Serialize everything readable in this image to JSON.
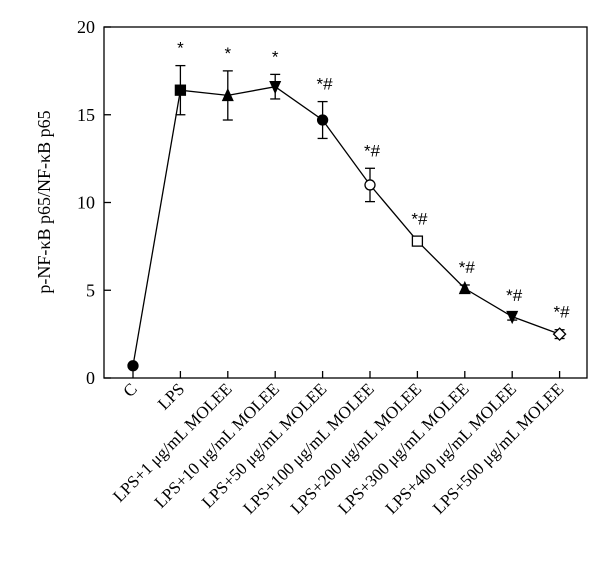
{
  "chart_data": {
    "type": "line",
    "ylabel": "p-NF-κB p65/NF-κB p65",
    "ylim": [
      0,
      20
    ],
    "yticks": [
      0,
      5,
      10,
      15,
      20
    ],
    "grid": false,
    "categories": [
      "C",
      "LPS",
      "LPS+1 μg/mL MOLEE",
      "LPS+10 μg/mL MOLEE",
      "LPS+50 μg/mL MOLEE",
      "LPS+100 μg/mL MOLEE",
      "LPS+200 μg/mL MOLEE",
      "LPS+300 μg/mL MOLEE",
      "LPS+400 μg/mL MOLEE",
      "LPS+500 μg/mL MOLEE"
    ],
    "values": [
      0.7,
      16.4,
      16.1,
      16.6,
      14.7,
      11.0,
      7.8,
      5.1,
      3.5,
      2.5
    ],
    "errors": [
      0,
      1.4,
      1.4,
      0.7,
      1.05,
      0.95,
      0.25,
      0.2,
      0.2,
      0.25
    ],
    "markers": [
      "circle",
      "square",
      "triangle-up",
      "triangle-down",
      "circle",
      "circle-open",
      "square-open",
      "triangle-up",
      "triangle-down",
      "diamond-open"
    ],
    "annotations": [
      "",
      "*",
      "*",
      "*",
      "*#",
      "*#",
      "*#",
      "*#",
      "*#",
      "*#"
    ]
  }
}
